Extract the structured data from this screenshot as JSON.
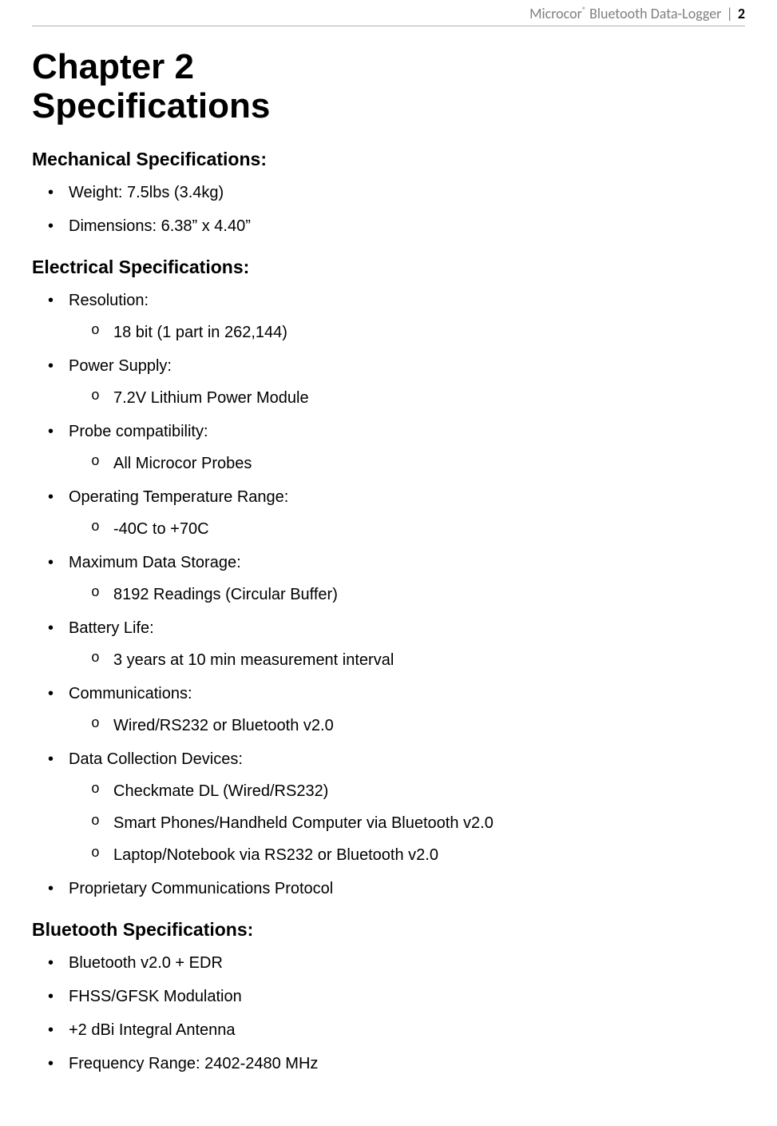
{
  "colors": {
    "page_bg": "#ffffff",
    "text": "#000000",
    "header_text_muted": "#808080",
    "header_rule": "#b0b0b0"
  },
  "typography": {
    "body_font": "Arial",
    "header_font": "Calibri",
    "chapter_title_fontsize_pt": 33,
    "section_title_fontsize_pt": 17,
    "body_fontsize_pt": 15,
    "header_fontsize_pt": 13.5
  },
  "header": {
    "brand_name": "Microcor",
    "brand_trademark": "®",
    "subtitle": "Bluetooth Data-Logger",
    "separator": "|",
    "page_number": "2"
  },
  "chapter": {
    "line1": "Chapter 2",
    "line2": "Specifications"
  },
  "sections": [
    {
      "title": "Mechanical Specifications:",
      "items": [
        {
          "label": "Weight:  7.5lbs (3.4kg)",
          "sub": []
        },
        {
          "label": "Dimensions: 6.38” x 4.40”",
          "sub": []
        }
      ]
    },
    {
      "title": "Electrical Specifications:",
      "items": [
        {
          "label": "Resolution:",
          "sub": [
            "18 bit (1 part in 262,144)"
          ]
        },
        {
          "label": "Power Supply:",
          "sub": [
            "7.2V Lithium Power Module"
          ]
        },
        {
          "label": "Probe compatibility:",
          "sub": [
            "All Microcor Probes"
          ]
        },
        {
          "label": "Operating Temperature Range:",
          "sub": [
            "-40C to +70C"
          ]
        },
        {
          "label": "Maximum Data Storage:",
          "sub": [
            "8192 Readings (Circular Buffer)"
          ]
        },
        {
          "label": "Battery Life:",
          "sub": [
            "3 years at 10 min measurement interval"
          ]
        },
        {
          "label": "Communications:",
          "sub": [
            "Wired/RS232 or Bluetooth v2.0"
          ]
        },
        {
          "label": "Data Collection Devices:",
          "sub": [
            "Checkmate DL (Wired/RS232)",
            "Smart Phones/Handheld Computer via Bluetooth v2.0",
            "Laptop/Notebook via RS232 or Bluetooth v2.0"
          ]
        },
        {
          "label": "Proprietary Communications Protocol",
          "sub": []
        }
      ]
    },
    {
      "title": "Bluetooth Specifications:",
      "items": [
        {
          "label": "Bluetooth v2.0 + EDR",
          "sub": []
        },
        {
          "label": "FHSS/GFSK Modulation",
          "sub": []
        },
        {
          "label": "+2 dBi Integral Antenna",
          "sub": []
        },
        {
          "label": "Frequency Range: 2402-2480 MHz",
          "sub": []
        }
      ]
    }
  ]
}
